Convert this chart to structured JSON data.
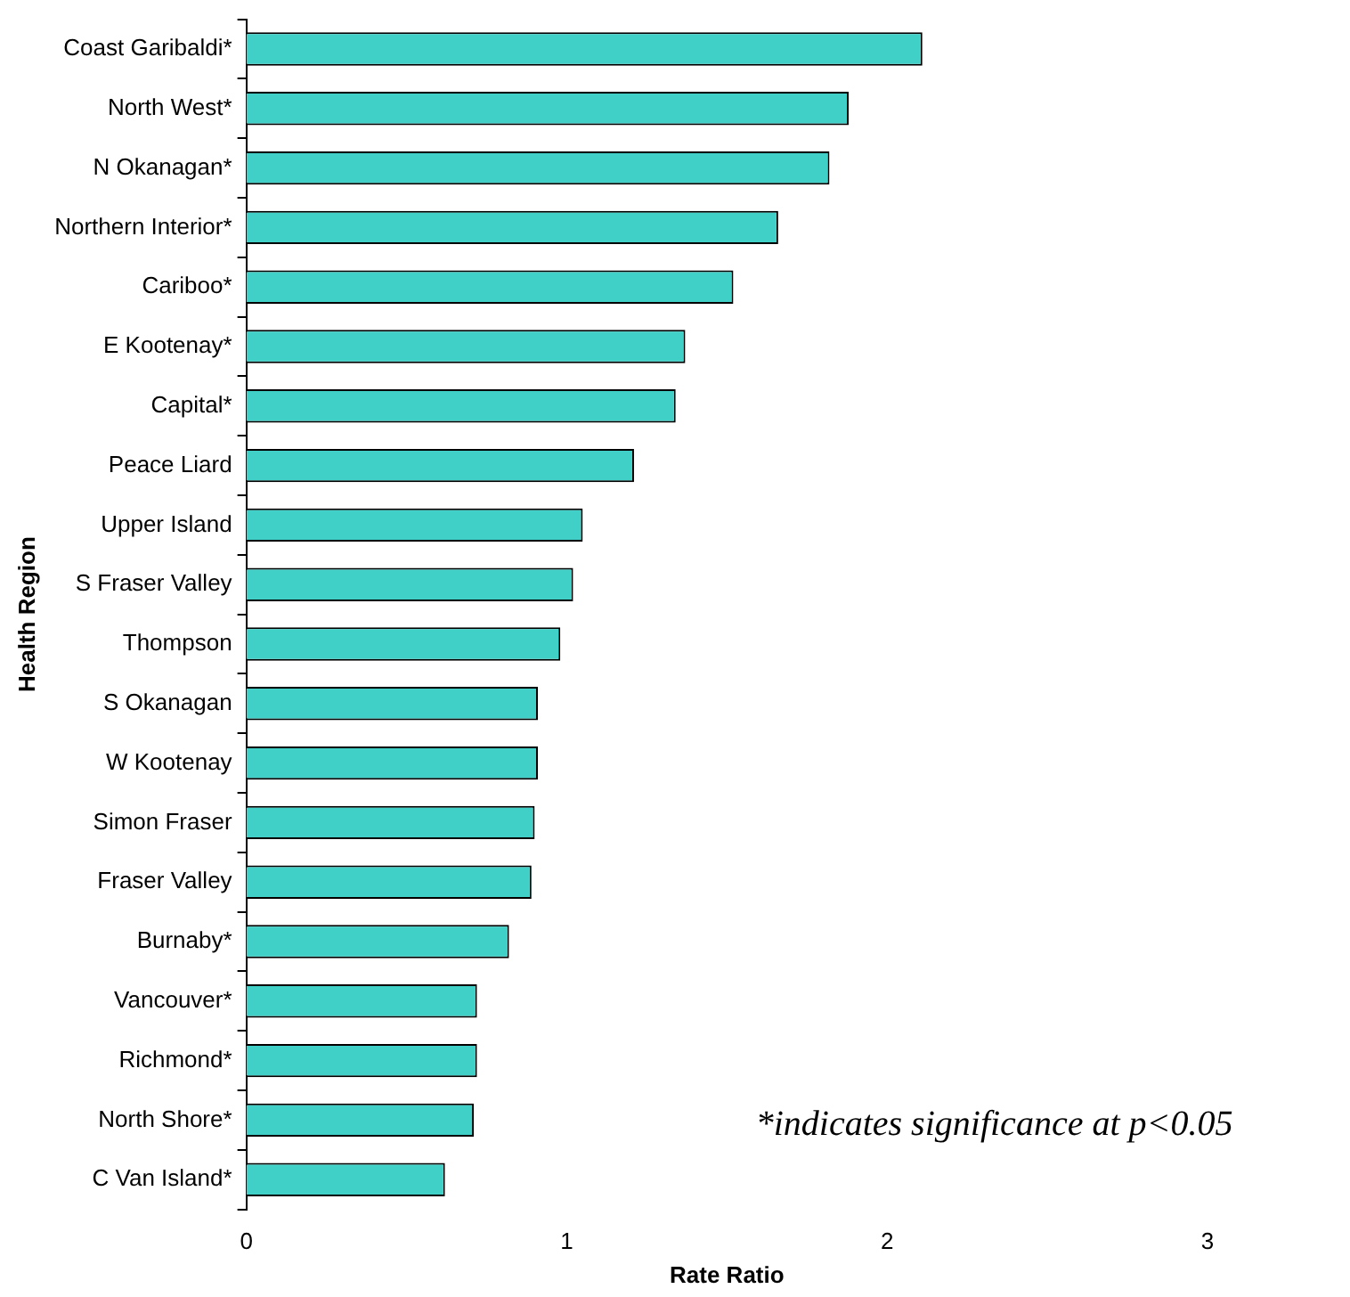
{
  "chart_data": {
    "type": "bar",
    "orientation": "horizontal",
    "xlabel": "Rate Ratio",
    "ylabel": "Health Region",
    "categories": [
      "Coast Garibaldi*",
      "North West*",
      "N Okanagan*",
      "Northern Interior*",
      "Cariboo*",
      "E Kootenay*",
      "Capital*",
      "Peace Liard",
      "Upper Island",
      "S Fraser Valley",
      "Thompson",
      "S Okanagan",
      "W Kootenay",
      "Simon Fraser",
      "Fraser Valley",
      "Burnaby*",
      "Vancouver*",
      "Richmond*",
      "North Shore*",
      "C Van Island*"
    ],
    "values": [
      2.11,
      1.88,
      1.82,
      1.66,
      1.52,
      1.37,
      1.34,
      1.21,
      1.05,
      1.02,
      0.98,
      0.91,
      0.91,
      0.9,
      0.89,
      0.82,
      0.72,
      0.72,
      0.71,
      0.62
    ],
    "color": "#40d0c8",
    "xlim": [
      0,
      3
    ],
    "xticks": [
      0,
      1,
      2,
      3
    ],
    "grid": false,
    "legend": false,
    "annotations": [
      "*indicates significance at p<0.05"
    ]
  }
}
